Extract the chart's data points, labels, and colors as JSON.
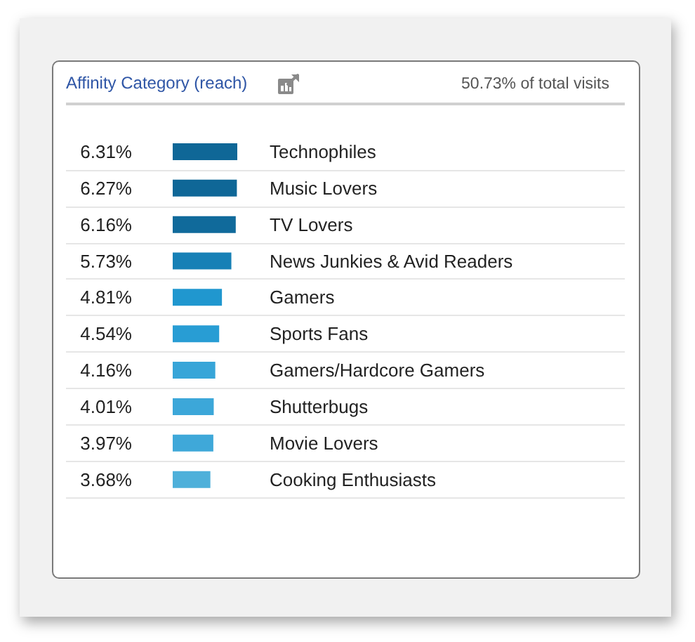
{
  "chart_data": {
    "type": "bar",
    "orientation": "horizontal",
    "title": "Affinity Category (reach)",
    "subtitle": "50.73% of total visits",
    "categories": [
      "Technophiles",
      "Music Lovers",
      "TV Lovers",
      "News Junkies & Avid Readers",
      "Gamers",
      "Sports Fans",
      "Gamers/Hardcore Gamers",
      "Shutterbugs",
      "Movie Lovers",
      "Cooking Enthusiasts"
    ],
    "values": [
      6.31,
      6.27,
      6.16,
      5.73,
      4.81,
      4.54,
      4.16,
      4.01,
      3.97,
      3.68
    ],
    "colors": [
      "#0f6797",
      "#0f6797",
      "#106a9b",
      "#1680b6",
      "#2097cf",
      "#289dd4",
      "#37a5d8",
      "#3ca7d9",
      "#3fa8d9",
      "#4eb0da"
    ],
    "value_labels": [
      "6.31%",
      "6.27%",
      "6.16%",
      "5.73%",
      "4.81%",
      "4.54%",
      "4.16%",
      "4.01%",
      "3.97%",
      "3.68%"
    ],
    "grid": "y"
  }
}
